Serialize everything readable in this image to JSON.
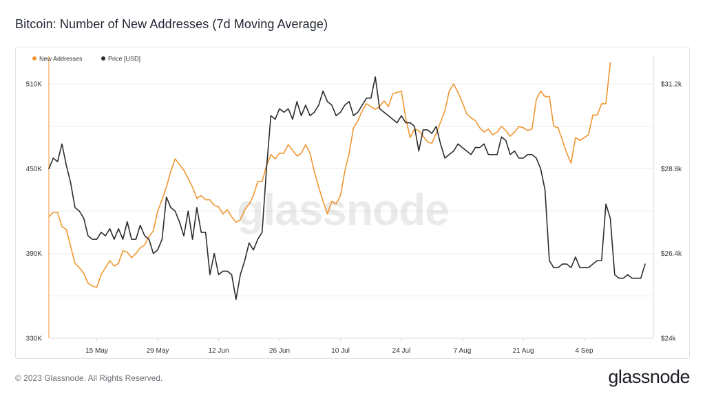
{
  "title": "Bitcoin: Number of New Addresses (7d Moving Average)",
  "footer": "© 2023 Glassnode. All Rights Reserved.",
  "brand": "glassnode",
  "watermark": "glassnode",
  "colors": {
    "new_addresses": "#f0952e",
    "price": "#2b2b2b",
    "grid": "#ececec",
    "axis": "#d8d8d8"
  },
  "chart_data": {
    "type": "line",
    "title": "Bitcoin: Number of New Addresses (7d Moving Average)",
    "legend_position": "top-left",
    "grid": true,
    "x_tick_labels": [
      "15 May",
      "29 May",
      "12 Jun",
      "26 Jun",
      "10 Jul",
      "24 Jul",
      "7 Aug",
      "21 Aug",
      "4 Sep"
    ],
    "y_left": {
      "ylim": [
        330000,
        530000
      ],
      "ticks": [
        330000,
        390000,
        450000,
        510000
      ],
      "tick_labels": [
        "330K",
        "390K",
        "450K",
        "510K"
      ]
    },
    "y_right": {
      "ylim": [
        24000,
        32000
      ],
      "ticks": [
        24000,
        26400,
        28800,
        31200
      ],
      "tick_labels": [
        "$24k",
        "$26.4k",
        "$28.8k",
        "$31.2k"
      ]
    },
    "series": [
      {
        "name": "New Addresses",
        "axis": "left",
        "start_date": "2023-05-04",
        "values": [
          416000,
          419000,
          419000,
          409000,
          407000,
          395000,
          383000,
          380000,
          376000,
          369000,
          367000,
          366000,
          375000,
          380000,
          385000,
          381000,
          383000,
          392000,
          391000,
          387000,
          390000,
          394000,
          396000,
          402000,
          406000,
          420000,
          428000,
          437000,
          448000,
          457000,
          453000,
          449000,
          443000,
          437000,
          429000,
          431000,
          428000,
          428000,
          424000,
          423000,
          418000,
          421000,
          416000,
          412000,
          414000,
          421000,
          425000,
          431000,
          441000,
          441000,
          452000,
          460000,
          457000,
          461000,
          461000,
          467000,
          463000,
          459000,
          461000,
          467000,
          461000,
          448000,
          437000,
          427000,
          418000,
          427000,
          425000,
          431000,
          448000,
          461000,
          479000,
          484000,
          491000,
          496000,
          494000,
          492000,
          494000,
          498000,
          494000,
          503000,
          504000,
          505000,
          486000,
          472000,
          478000,
          477000,
          473000,
          469000,
          468000,
          475000,
          483000,
          491000,
          505000,
          510000,
          504000,
          497000,
          489000,
          486000,
          484000,
          479000,
          476000,
          478000,
          474000,
          476000,
          480000,
          477000,
          473000,
          476000,
          480000,
          479000,
          477000,
          478000,
          499000,
          505000,
          501000,
          501000,
          480000,
          479000,
          470000,
          461000,
          454000,
          472000,
          470000,
          472000,
          474000,
          488000,
          488000,
          496000,
          496000,
          525000
        ]
      },
      {
        "name": "Price [USD]",
        "axis": "right",
        "start_date": "2023-05-04",
        "values": [
          28800,
          29100,
          29000,
          29500,
          28900,
          28400,
          27700,
          27600,
          27400,
          26900,
          26800,
          26800,
          27000,
          26900,
          27100,
          26800,
          27100,
          26800,
          27300,
          26800,
          26800,
          27200,
          26900,
          26800,
          26400,
          26500,
          26800,
          28000,
          27700,
          27600,
          27300,
          26900,
          27600,
          26800,
          27700,
          27000,
          27000,
          25800,
          26400,
          25800,
          25900,
          25900,
          25800,
          25100,
          25800,
          26200,
          26700,
          26500,
          26800,
          27000,
          28800,
          30300,
          30200,
          30500,
          30400,
          30500,
          30200,
          30700,
          30300,
          30600,
          30300,
          30400,
          30600,
          31000,
          30700,
          30600,
          30300,
          30400,
          30600,
          30700,
          30300,
          30400,
          30600,
          30800,
          30800,
          31400,
          30500,
          30400,
          30300,
          30200,
          30100,
          30300,
          30100,
          30100,
          30000,
          29300,
          29900,
          29900,
          29800,
          30000,
          29500,
          29100,
          29200,
          29300,
          29500,
          29400,
          29300,
          29200,
          29400,
          29400,
          29500,
          29200,
          29200,
          29200,
          29700,
          29600,
          29200,
          29300,
          29100,
          29100,
          29200,
          29200,
          29100,
          28800,
          28200,
          26200,
          26000,
          26000,
          26100,
          26100,
          26000,
          26300,
          26000,
          26000,
          26000,
          26100,
          26200,
          26200,
          27800,
          27400,
          25800,
          25700,
          25700,
          25800,
          25700,
          25700,
          25700,
          26100
        ]
      }
    ]
  }
}
